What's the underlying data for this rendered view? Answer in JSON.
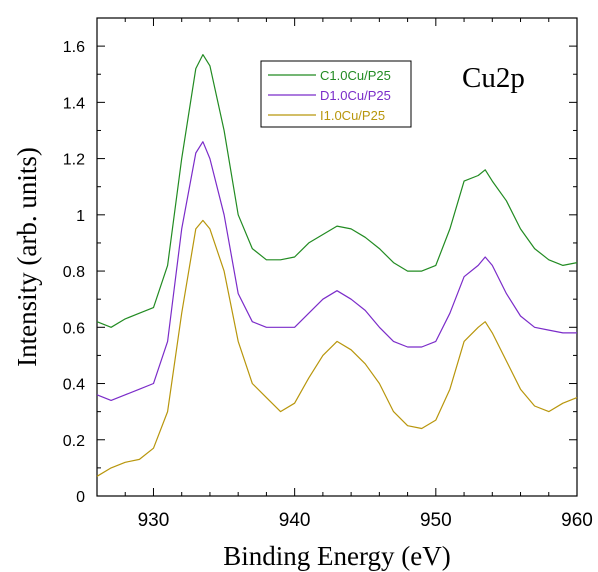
{
  "chart_data": {
    "type": "line",
    "annotation": "Cu2p",
    "xlabel": "Binding Energy (eV)",
    "ylabel": "Intensity (arb. units)",
    "xlim": [
      926,
      960
    ],
    "ylim": [
      0,
      1.7
    ],
    "x_ticks": [
      930,
      940,
      950,
      960
    ],
    "y_ticks": [
      0,
      0.2,
      0.4,
      0.6,
      0.8,
      1,
      1.2,
      1.4,
      1.6
    ],
    "x_tick_labels": [
      "930",
      "940",
      "950",
      "960"
    ],
    "y_tick_labels": [
      "0",
      "0.2",
      "0.4",
      "0.6",
      "0.8",
      "1",
      "1.2",
      "1.4",
      "1.6"
    ],
    "grid": false,
    "legend_position": "top-center",
    "series": [
      {
        "name": "C1.0Cu/P25",
        "color": "#228b22",
        "x": [
          926,
          927,
          928,
          929,
          930,
          931,
          932,
          933,
          933.5,
          934,
          935,
          936,
          937,
          938,
          939,
          940,
          941,
          942,
          943,
          944,
          945,
          946,
          947,
          948,
          949,
          950,
          951,
          952,
          953,
          953.5,
          954,
          955,
          956,
          957,
          958,
          959,
          960
        ],
        "y": [
          0.62,
          0.6,
          0.63,
          0.65,
          0.67,
          0.82,
          1.2,
          1.52,
          1.57,
          1.53,
          1.3,
          1.0,
          0.88,
          0.84,
          0.84,
          0.85,
          0.9,
          0.93,
          0.96,
          0.95,
          0.92,
          0.88,
          0.83,
          0.8,
          0.8,
          0.82,
          0.95,
          1.12,
          1.14,
          1.16,
          1.12,
          1.05,
          0.95,
          0.88,
          0.84,
          0.82,
          0.83
        ]
      },
      {
        "name": "D1.0Cu/P25",
        "color": "#7b2cc9",
        "x": [
          926,
          927,
          928,
          929,
          930,
          931,
          932,
          933,
          933.5,
          934,
          935,
          936,
          937,
          938,
          939,
          940,
          941,
          942,
          943,
          944,
          945,
          946,
          947,
          948,
          949,
          950,
          951,
          952,
          953,
          953.5,
          954,
          955,
          956,
          957,
          958,
          959,
          960
        ],
        "y": [
          0.36,
          0.34,
          0.36,
          0.38,
          0.4,
          0.55,
          0.95,
          1.22,
          1.26,
          1.2,
          1.0,
          0.72,
          0.62,
          0.6,
          0.6,
          0.6,
          0.65,
          0.7,
          0.73,
          0.7,
          0.66,
          0.6,
          0.55,
          0.53,
          0.53,
          0.55,
          0.65,
          0.78,
          0.82,
          0.85,
          0.82,
          0.72,
          0.64,
          0.6,
          0.59,
          0.58,
          0.58
        ]
      },
      {
        "name": "I1.0Cu/P25",
        "color": "#b8960c",
        "x": [
          926,
          927,
          928,
          929,
          930,
          931,
          932,
          933,
          933.5,
          934,
          935,
          936,
          937,
          938,
          939,
          940,
          941,
          942,
          943,
          944,
          945,
          946,
          947,
          948,
          949,
          950,
          951,
          952,
          953,
          953.5,
          954,
          955,
          956,
          957,
          958,
          959,
          960
        ],
        "y": [
          0.07,
          0.1,
          0.12,
          0.13,
          0.17,
          0.3,
          0.65,
          0.95,
          0.98,
          0.95,
          0.8,
          0.55,
          0.4,
          0.35,
          0.3,
          0.33,
          0.42,
          0.5,
          0.55,
          0.52,
          0.47,
          0.4,
          0.3,
          0.25,
          0.24,
          0.27,
          0.38,
          0.55,
          0.6,
          0.62,
          0.58,
          0.48,
          0.38,
          0.32,
          0.3,
          0.33,
          0.35
        ]
      }
    ]
  }
}
